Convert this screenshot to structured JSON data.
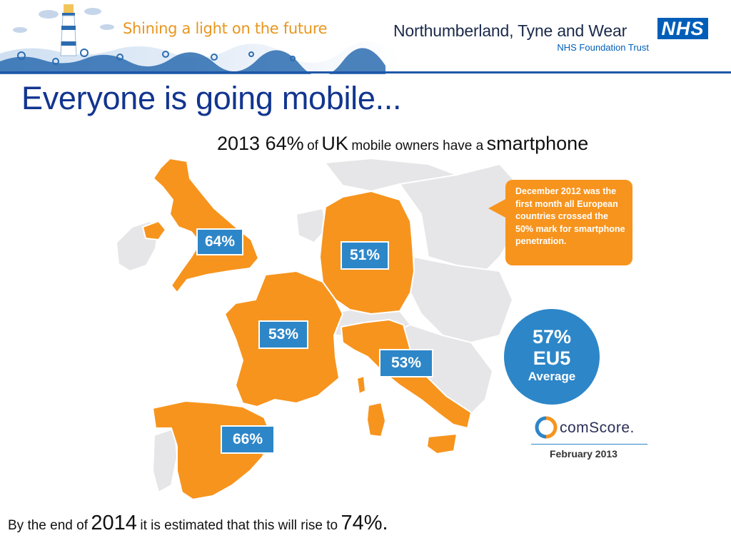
{
  "header": {
    "tagline": "Shining a light on the future",
    "organisation": "Northumberland, Tyne and Wear",
    "nhs_logo": "NHS",
    "trust": "NHS Foundation Trust",
    "lighthouse_icon": "lighthouse-icon",
    "wave_colors": [
      "#2b6cb0",
      "#9cc3e6",
      "#d9e7f5"
    ]
  },
  "slide": {
    "title": "Everyone is going mobile...",
    "subtitle": {
      "year_value": "2013 64%",
      "of": "of",
      "country": "UK",
      "middle": "mobile owners have a",
      "device": "smartphone"
    }
  },
  "map": {
    "highlight_color": "#f7941d",
    "base_color": "#e6e6e8",
    "label_color": "#2d86c8",
    "countries": [
      {
        "name": "uk",
        "value": "64%"
      },
      {
        "name": "germany",
        "value": "51%"
      },
      {
        "name": "france",
        "value": "53%"
      },
      {
        "name": "italy",
        "value": "53%"
      },
      {
        "name": "spain",
        "value": "66%"
      }
    ]
  },
  "callout": {
    "text": "December 2012 was the first month all European countries crossed the 50% mark for smartphone penetration."
  },
  "average": {
    "value": "57%",
    "group": "EU5",
    "label": "Average"
  },
  "source": {
    "brand": "comScore.",
    "date": "February 2013"
  },
  "footer": {
    "part1": "By the end of",
    "year": "2014",
    "part2": "it is estimated that this will rise to",
    "value": "74%."
  }
}
